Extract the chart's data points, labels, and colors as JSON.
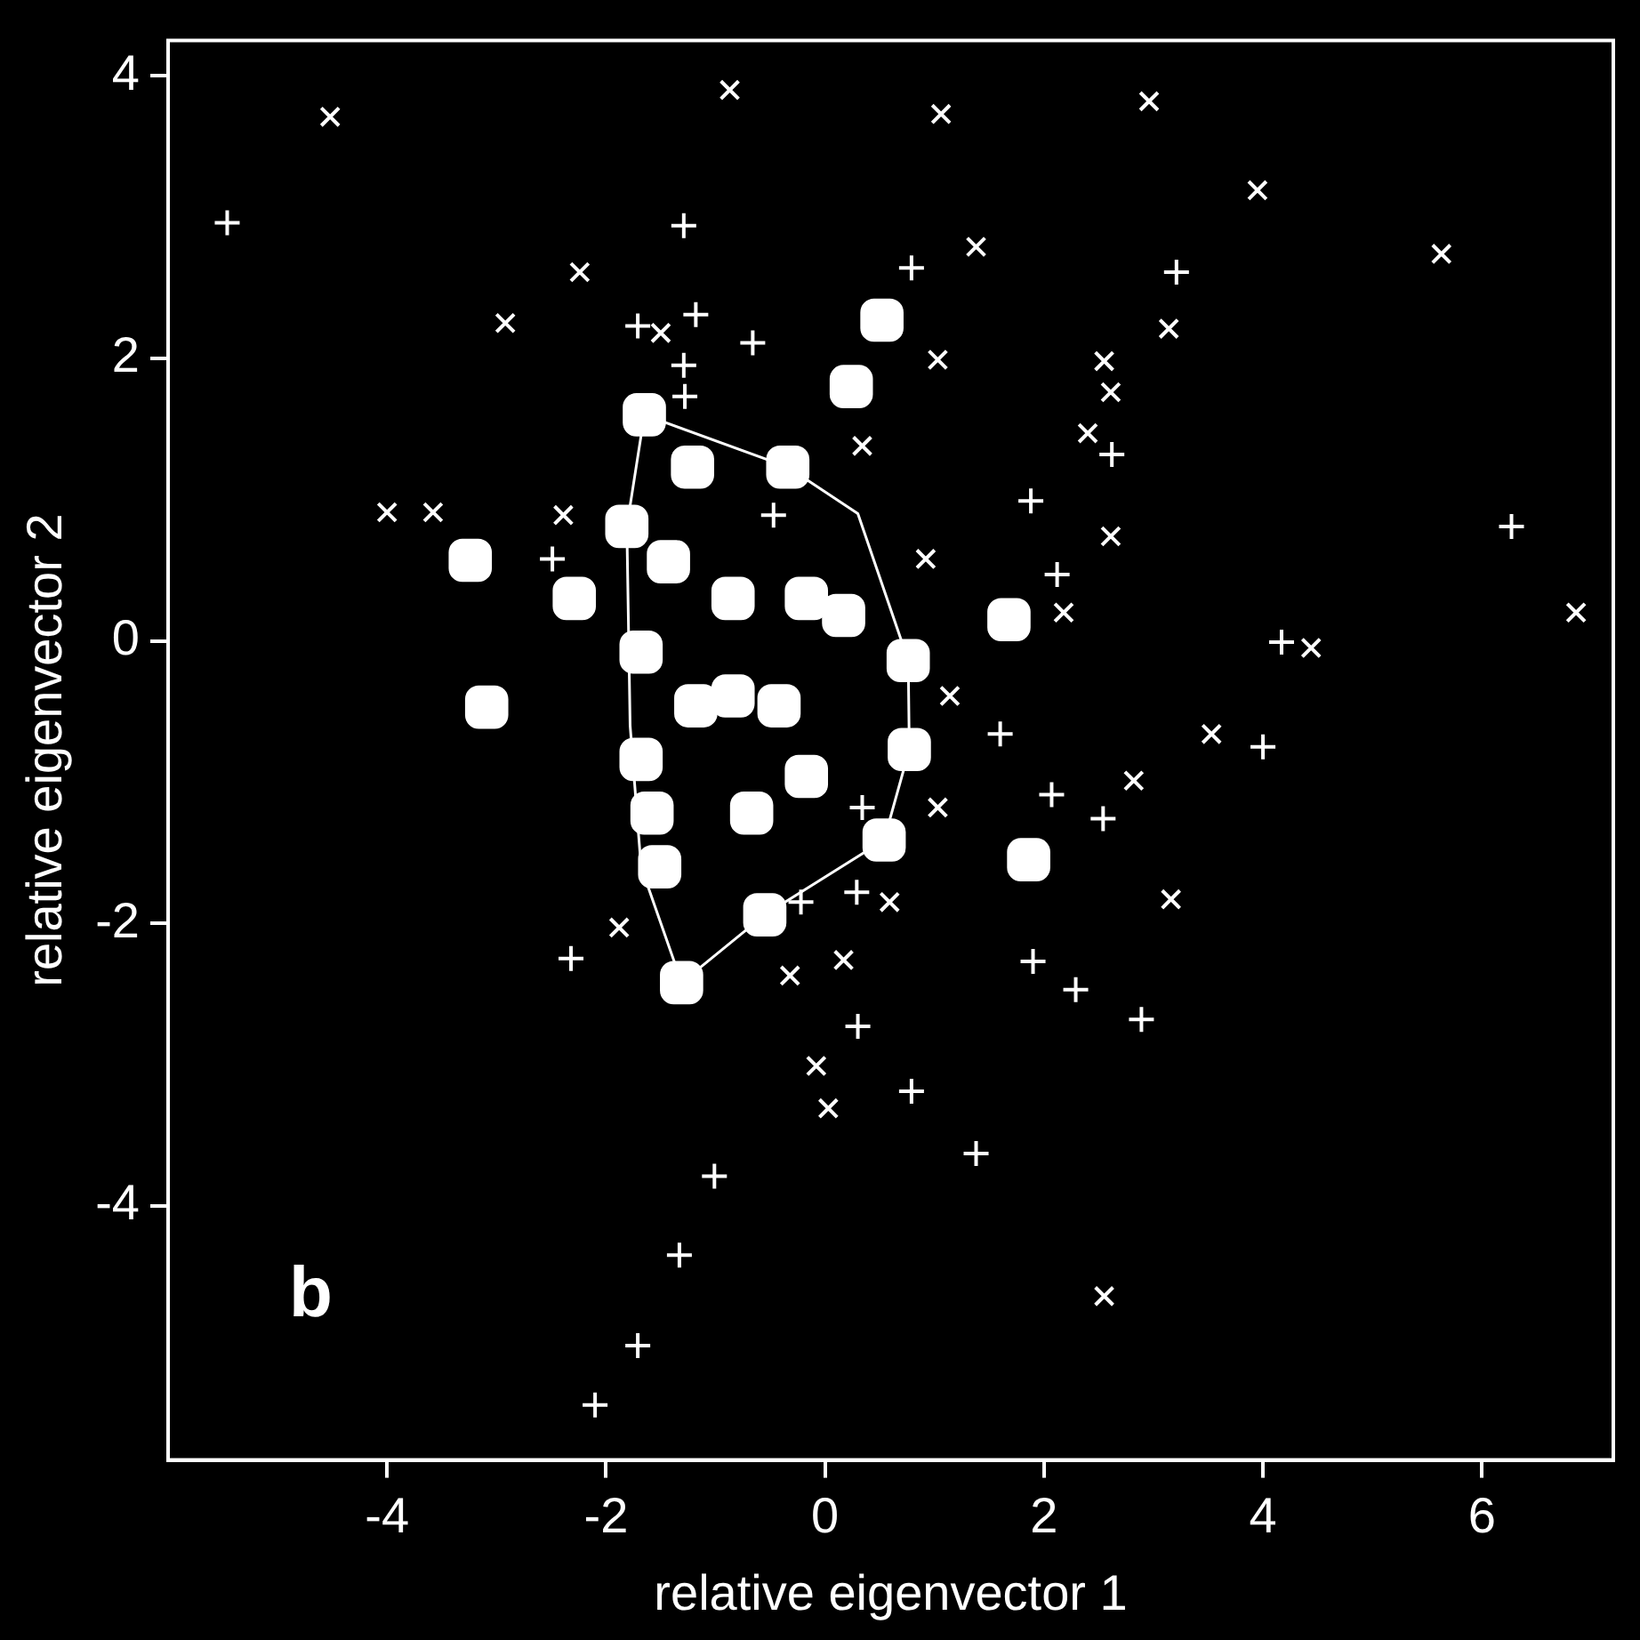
{
  "chart_data": {
    "type": "scatter",
    "xlabel": "relative eigenvector 1",
    "ylabel": "relative eigenvector 2",
    "xlim": [
      -6,
      7.2
    ],
    "ylim": [
      -5.8,
      4.25
    ],
    "xticks": [
      -4,
      -2,
      0,
      2,
      4,
      6
    ],
    "yticks": [
      -4,
      -2,
      0,
      2,
      4
    ],
    "grid": false,
    "legend": false,
    "annotations": [
      "b"
    ],
    "series": [
      {
        "color": "#ffffff",
        "marker": "cross",
        "x": [
          -4.52,
          -0.87,
          1.06,
          2.96,
          3.95,
          5.63,
          -2.24,
          -2.92,
          -1.5,
          1.38,
          3.14,
          1.03,
          2.55,
          2.61,
          2.4,
          -4.0,
          -3.58,
          -2.39,
          2.61,
          6.86,
          4.44,
          2.18,
          1.14,
          3.53,
          2.82,
          1.03,
          3.16,
          -1.88,
          -0.32,
          -0.08,
          0.03,
          0.59,
          0.17,
          2.55,
          0.34,
          0.92
        ],
        "values": [
          3.71,
          3.9,
          3.73,
          3.82,
          3.19,
          2.74,
          2.61,
          2.25,
          2.18,
          2.79,
          2.21,
          1.99,
          1.98,
          1.76,
          1.47,
          0.91,
          0.91,
          0.89,
          0.74,
          0.2,
          -0.05,
          0.2,
          -0.39,
          -0.66,
          -0.99,
          -1.18,
          -1.83,
          -2.03,
          -2.37,
          -3.01,
          -3.31,
          -1.85,
          -2.26,
          -4.64,
          1.38,
          0.58
        ]
      },
      {
        "color": "#ffffff",
        "marker": "plus",
        "x": [
          -5.46,
          -1.29,
          0.79,
          3.21,
          -1.18,
          -1.71,
          -0.66,
          -1.29,
          -1.28,
          2.62,
          1.88,
          -2.49,
          2.12,
          6.27,
          4.17,
          1.6,
          4.0,
          2.07,
          2.54,
          0.34,
          0.29,
          -0.22,
          -2.32,
          1.9,
          2.29,
          2.89,
          0.3,
          0.79,
          1.38,
          -1.01,
          -1.33,
          -1.71,
          -2.1,
          -0.47
        ],
        "values": [
          2.96,
          2.94,
          2.64,
          2.61,
          2.31,
          2.23,
          2.11,
          1.95,
          1.73,
          1.32,
          0.99,
          0.58,
          0.47,
          0.81,
          -0.01,
          -0.66,
          -0.75,
          -1.09,
          -1.26,
          -1.18,
          -1.78,
          -1.85,
          -2.25,
          -2.27,
          -2.47,
          -2.68,
          -2.73,
          -3.19,
          -3.63,
          -3.79,
          -4.35,
          -4.99,
          -5.41,
          0.89
        ]
      },
      {
        "color": "#ffffff",
        "marker": "square",
        "x": [
          0.52,
          0.24,
          -3.24,
          -3.09,
          1.68,
          1.86,
          0.77,
          0.54,
          -0.55,
          -1.31,
          -1.65,
          -1.21,
          -0.34,
          -1.81,
          -2.29,
          -1.43,
          -0.84,
          -0.17,
          0.17,
          0.76,
          -0.84,
          -1.68,
          -0.67,
          -0.17,
          -1.51,
          -1.58,
          -1.18,
          -0.42,
          -1.68
        ],
        "values": [
          2.27,
          1.8,
          0.57,
          -0.47,
          0.15,
          -1.55,
          -0.77,
          -1.41,
          -1.94,
          -2.42,
          1.6,
          1.23,
          1.23,
          0.81,
          0.3,
          0.56,
          0.3,
          0.3,
          0.18,
          -0.14,
          -0.39,
          -0.84,
          -1.22,
          -0.96,
          -1.6,
          -1.22,
          -0.46,
          -0.46,
          -0.08
        ]
      },
      {
        "type": "line",
        "color": "#ffffff",
        "marker": "none",
        "x": [
          -1.81,
          -1.65,
          -0.34,
          0.3,
          0.76,
          0.77
        ],
        "values": [
          0.81,
          1.6,
          1.23,
          0.9,
          -0.14,
          -0.77
        ]
      },
      {
        "type": "line",
        "color": "#ffffff",
        "marker": "none",
        "x": [
          -1.81,
          -1.78,
          -1.68,
          -1.31,
          -0.55,
          0.54,
          0.77
        ],
        "values": [
          0.81,
          -0.6,
          -1.6,
          -2.42,
          -1.94,
          -1.41,
          -0.77
        ]
      }
    ]
  }
}
